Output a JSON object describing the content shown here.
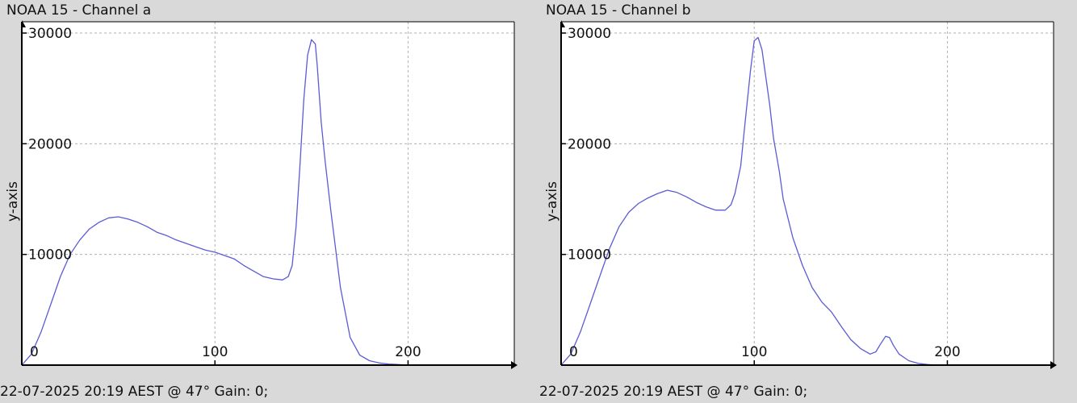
{
  "colors": {
    "background": "#d9d9d9",
    "plot_background": "#ffffff",
    "series": "#5b5bd6",
    "grid": "#b0b0b0",
    "axis": "#000000"
  },
  "chart_data": [
    {
      "type": "line",
      "title": "NOAA 15 - Channel a",
      "footer": "22-07-2025 20:19 AEST @ 47° Gain: 0;",
      "ylabel": "y-axis",
      "xlim": [
        0,
        255
      ],
      "ylim": [
        0,
        30000
      ],
      "x_ticks": [
        0,
        100,
        200
      ],
      "y_ticks": [
        10000,
        20000,
        30000
      ],
      "y_tick_labels": [
        "10000",
        "20000",
        "30000"
      ],
      "x_tick_labels": [
        "0",
        "100",
        "200"
      ],
      "grid": true,
      "series": [
        {
          "x": [
            0,
            5,
            10,
            15,
            20,
            25,
            30,
            35,
            40,
            45,
            50,
            55,
            60,
            65,
            70,
            75,
            80,
            85,
            90,
            95,
            100,
            105,
            110,
            115,
            120,
            125,
            130,
            135,
            138,
            140,
            142,
            144,
            146,
            148,
            150,
            152,
            153,
            155,
            157,
            160,
            165,
            170,
            175,
            180,
            185,
            190,
            195,
            200,
            205
          ],
          "y": [
            0,
            1000,
            3000,
            5500,
            8000,
            10000,
            11300,
            12300,
            12900,
            13300,
            13400,
            13200,
            12900,
            12500,
            12000,
            11700,
            11300,
            11000,
            10700,
            10400,
            10200,
            9900,
            9600,
            9000,
            8500,
            8000,
            7800,
            7700,
            8000,
            9000,
            12500,
            18000,
            24000,
            28000,
            29400,
            29000,
            27000,
            22000,
            18500,
            14000,
            7000,
            2500,
            900,
            400,
            200,
            100,
            50,
            0,
            0
          ]
        }
      ]
    },
    {
      "type": "line",
      "title": "NOAA 15 - Channel b",
      "footer": "22-07-2025 20:19 AEST @ 47° Gain: 0;",
      "ylabel": "y-axis",
      "xlim": [
        0,
        255
      ],
      "ylim": [
        0,
        30000
      ],
      "x_ticks": [
        0,
        100,
        200
      ],
      "y_ticks": [
        10000,
        20000,
        30000
      ],
      "y_tick_labels": [
        "10000",
        "20000",
        "30000"
      ],
      "x_tick_labels": [
        "0",
        "100",
        "200"
      ],
      "grid": true,
      "series": [
        {
          "x": [
            0,
            5,
            10,
            15,
            20,
            25,
            30,
            35,
            40,
            45,
            50,
            55,
            60,
            65,
            70,
            75,
            80,
            85,
            88,
            90,
            93,
            95,
            98,
            100,
            102,
            104,
            106,
            108,
            110,
            113,
            115,
            120,
            125,
            130,
            135,
            140,
            145,
            150,
            155,
            160,
            163,
            165,
            168,
            170,
            172,
            175,
            180,
            185,
            190,
            195,
            200
          ],
          "y": [
            0,
            1000,
            3000,
            5500,
            8000,
            10500,
            12500,
            13800,
            14600,
            15100,
            15500,
            15800,
            15600,
            15200,
            14700,
            14300,
            14000,
            14000,
            14500,
            15500,
            18000,
            21500,
            26500,
            29300,
            29600,
            28500,
            26000,
            23500,
            20500,
            17500,
            15000,
            11500,
            9000,
            7000,
            5700,
            4800,
            3500,
            2300,
            1500,
            1000,
            1200,
            1800,
            2600,
            2500,
            1800,
            1000,
            400,
            150,
            50,
            0,
            0
          ]
        }
      ]
    }
  ]
}
